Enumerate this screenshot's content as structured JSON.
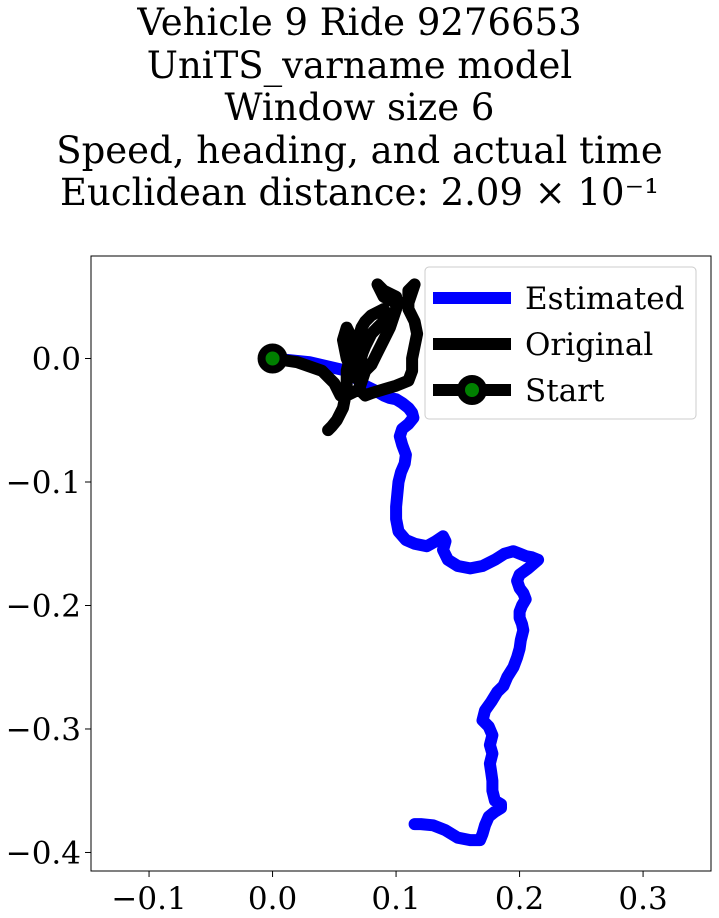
{
  "chart_data": {
    "type": "line",
    "title_lines": [
      "Vehicle 9 Ride 9276653",
      "UniTS_varname model",
      "Window size 6",
      "Speed, heading, and actual time",
      "Euclidean distance: 2.09 × 10⁻¹"
    ],
    "xlabel": "",
    "ylabel": "",
    "xlim": [
      -0.147,
      0.355
    ],
    "ylim": [
      -0.415,
      0.083
    ],
    "xticks": [
      -0.1,
      0.0,
      0.1,
      0.2,
      0.3
    ],
    "xtick_labels": [
      "−0.1",
      "0.0",
      "0.1",
      "0.2",
      "0.3"
    ],
    "yticks": [
      0.0,
      -0.1,
      -0.2,
      -0.3,
      -0.4
    ],
    "ytick_labels": [
      "0.0",
      "−0.1",
      "−0.2",
      "−0.3",
      "−0.4"
    ],
    "grid": false,
    "legend_position": "top-right",
    "series": [
      {
        "name": "Estimated",
        "color": "#0000ff",
        "points": [
          [
            0.0,
            0.0
          ],
          [
            0.03,
            -0.003
          ],
          [
            0.06,
            -0.01
          ],
          [
            0.075,
            -0.022
          ],
          [
            0.085,
            -0.027
          ],
          [
            0.09,
            -0.03
          ],
          [
            0.095,
            -0.032
          ],
          [
            0.1,
            -0.033
          ],
          [
            0.105,
            -0.036
          ],
          [
            0.11,
            -0.04
          ],
          [
            0.113,
            -0.044
          ],
          [
            0.114,
            -0.048
          ],
          [
            0.11,
            -0.053
          ],
          [
            0.105,
            -0.057
          ],
          [
            0.103,
            -0.063
          ],
          [
            0.105,
            -0.07
          ],
          [
            0.108,
            -0.078
          ],
          [
            0.107,
            -0.085
          ],
          [
            0.104,
            -0.092
          ],
          [
            0.102,
            -0.1
          ],
          [
            0.101,
            -0.11
          ],
          [
            0.1,
            -0.12
          ],
          [
            0.1,
            -0.13
          ],
          [
            0.102,
            -0.14
          ],
          [
            0.108,
            -0.147
          ],
          [
            0.115,
            -0.15
          ],
          [
            0.125,
            -0.152
          ],
          [
            0.132,
            -0.148
          ],
          [
            0.138,
            -0.144
          ],
          [
            0.14,
            -0.148
          ],
          [
            0.138,
            -0.155
          ],
          [
            0.142,
            -0.163
          ],
          [
            0.15,
            -0.168
          ],
          [
            0.16,
            -0.17
          ],
          [
            0.17,
            -0.168
          ],
          [
            0.18,
            -0.163
          ],
          [
            0.188,
            -0.158
          ],
          [
            0.195,
            -0.156
          ],
          [
            0.2,
            -0.158
          ],
          [
            0.205,
            -0.16
          ],
          [
            0.21,
            -0.161
          ],
          [
            0.215,
            -0.163
          ],
          [
            0.207,
            -0.17
          ],
          [
            0.2,
            -0.175
          ],
          [
            0.198,
            -0.18
          ],
          [
            0.2,
            -0.186
          ],
          [
            0.203,
            -0.19
          ],
          [
            0.205,
            -0.195
          ],
          [
            0.202,
            -0.2
          ],
          [
            0.2,
            -0.205
          ],
          [
            0.2,
            -0.21
          ],
          [
            0.202,
            -0.215
          ],
          [
            0.203,
            -0.22
          ],
          [
            0.201,
            -0.228
          ],
          [
            0.2,
            -0.235
          ],
          [
            0.198,
            -0.242
          ],
          [
            0.195,
            -0.25
          ],
          [
            0.19,
            -0.258
          ],
          [
            0.187,
            -0.265
          ],
          [
            0.182,
            -0.27
          ],
          [
            0.177,
            -0.278
          ],
          [
            0.172,
            -0.285
          ],
          [
            0.17,
            -0.293
          ],
          [
            0.175,
            -0.298
          ],
          [
            0.178,
            -0.305
          ],
          [
            0.176,
            -0.313
          ],
          [
            0.178,
            -0.32
          ],
          [
            0.176,
            -0.328
          ],
          [
            0.177,
            -0.335
          ],
          [
            0.178,
            -0.342
          ],
          [
            0.178,
            -0.35
          ],
          [
            0.18,
            -0.358
          ],
          [
            0.185,
            -0.361
          ],
          [
            0.185,
            -0.364
          ],
          [
            0.18,
            -0.367
          ],
          [
            0.175,
            -0.371
          ],
          [
            0.172,
            -0.378
          ],
          [
            0.17,
            -0.385
          ],
          [
            0.168,
            -0.39
          ],
          [
            0.16,
            -0.39
          ],
          [
            0.15,
            -0.388
          ],
          [
            0.14,
            -0.382
          ],
          [
            0.13,
            -0.378
          ],
          [
            0.12,
            -0.377
          ],
          [
            0.115,
            -0.377
          ]
        ]
      },
      {
        "name": "Original",
        "color": "#000000",
        "points": [
          [
            0.0,
            0.0
          ],
          [
            0.02,
            -0.003
          ],
          [
            0.04,
            -0.01
          ],
          [
            0.05,
            -0.02
          ],
          [
            0.055,
            -0.03
          ],
          [
            0.06,
            -0.03
          ],
          [
            0.07,
            -0.025
          ],
          [
            0.075,
            -0.01
          ],
          [
            0.07,
            0.005
          ],
          [
            0.065,
            0.015
          ],
          [
            0.06,
            0.025
          ],
          [
            0.057,
            0.015
          ],
          [
            0.06,
            0.0
          ],
          [
            0.065,
            -0.012
          ],
          [
            0.07,
            -0.018
          ],
          [
            0.075,
            -0.01
          ],
          [
            0.08,
            -0.005
          ],
          [
            0.085,
            0.005
          ],
          [
            0.09,
            0.015
          ],
          [
            0.095,
            0.025
          ],
          [
            0.1,
            0.04
          ],
          [
            0.1,
            0.05
          ],
          [
            0.09,
            0.055
          ],
          [
            0.085,
            0.06
          ],
          [
            0.09,
            0.05
          ],
          [
            0.1,
            0.045
          ],
          [
            0.11,
            0.045
          ],
          [
            0.115,
            0.06
          ],
          [
            0.11,
            0.055
          ],
          [
            0.11,
            0.04
          ],
          [
            0.115,
            0.03
          ],
          [
            0.117,
            0.02
          ],
          [
            0.115,
            0.01
          ],
          [
            0.113,
            0.0
          ],
          [
            0.113,
            -0.01
          ],
          [
            0.11,
            -0.018
          ],
          [
            0.1,
            -0.022
          ],
          [
            0.09,
            -0.025
          ],
          [
            0.08,
            -0.028
          ],
          [
            0.075,
            -0.03
          ],
          [
            0.07,
            -0.025
          ],
          [
            0.072,
            -0.015
          ],
          [
            0.07,
            -0.005
          ],
          [
            0.073,
            0.005
          ],
          [
            0.075,
            0.01
          ],
          [
            0.08,
            0.02
          ],
          [
            0.085,
            0.025
          ],
          [
            0.09,
            0.03
          ],
          [
            0.093,
            0.035
          ],
          [
            0.09,
            0.04
          ],
          [
            0.08,
            0.035
          ],
          [
            0.075,
            0.03
          ],
          [
            0.072,
            0.025
          ],
          [
            0.07,
            0.018
          ],
          [
            0.066,
            0.012
          ],
          [
            0.064,
            0.005
          ],
          [
            0.06,
            -0.01
          ],
          [
            0.06,
            -0.025
          ],
          [
            0.057,
            -0.04
          ],
          [
            0.052,
            -0.05
          ],
          [
            0.048,
            -0.055
          ],
          [
            0.045,
            -0.058
          ]
        ]
      },
      {
        "name": "Start",
        "color": "#000000",
        "marker_face": "#008000",
        "points": [
          [
            0.0,
            0.0
          ]
        ]
      }
    ]
  }
}
